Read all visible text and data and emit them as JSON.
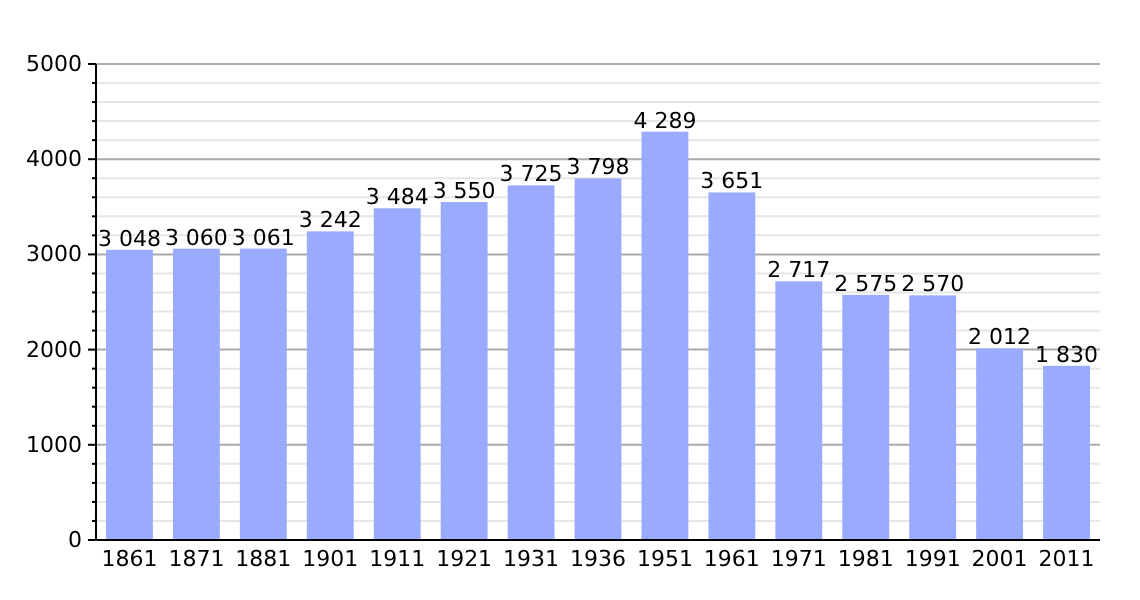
{
  "chart_data": {
    "type": "bar",
    "categories": [
      "1861",
      "1871",
      "1881",
      "1901",
      "1911",
      "1921",
      "1931",
      "1936",
      "1951",
      "1961",
      "1971",
      "1981",
      "1991",
      "2001",
      "2011"
    ],
    "values": [
      3048,
      3060,
      3061,
      3242,
      3484,
      3550,
      3725,
      3798,
      4289,
      3651,
      2717,
      2575,
      2570,
      2012,
      1830
    ],
    "value_labels": [
      "3 048",
      "3 060",
      "3 061",
      "3 242",
      "3 484",
      "3 550",
      "3 725",
      "3 798",
      "4 289",
      "3 651",
      "2 717",
      "2 575",
      "2 570",
      "2 012",
      "1 830"
    ],
    "color": "#99aaff",
    "ylim": [
      0,
      5000
    ],
    "yticks": [
      0,
      {
        "value": 200,
        "label": null
      },
      {
        "value": 400,
        "label": null
      },
      {
        "value": 600,
        "label": null
      },
      {
        "value": 800,
        "label": null
      },
      1000,
      {
        "value": 1200,
        "label": null
      },
      {
        "value": 1400,
        "label": null
      },
      {
        "value": 1600,
        "label": null
      },
      {
        "value": 1800,
        "label": null
      },
      2000,
      {
        "value": 2200,
        "label": null
      },
      {
        "value": 2400,
        "label": null
      },
      {
        "value": 2600,
        "label": null
      },
      {
        "value": 2800,
        "label": null
      },
      3000,
      {
        "value": 3200,
        "label": null
      },
      {
        "value": 3400,
        "label": null
      },
      {
        "value": 3600,
        "label": null
      },
      {
        "value": 3800,
        "label": null
      },
      4000,
      {
        "value": 4200,
        "label": null
      },
      {
        "value": 4400,
        "label": null
      },
      {
        "value": 4600,
        "label": null
      },
      {
        "value": 4800,
        "label": null
      },
      5000
    ],
    "grid": "y"
  }
}
